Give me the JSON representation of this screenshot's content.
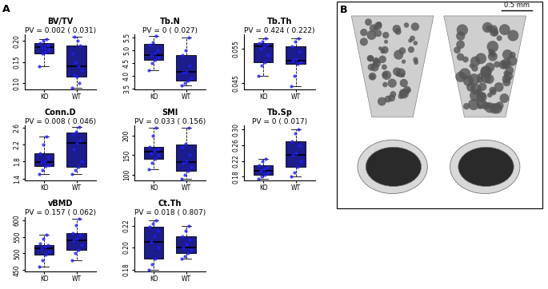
{
  "panel_labels": [
    "A",
    "B"
  ],
  "scale_bar": "0.5 mm",
  "chart_data": [
    {
      "type": "box",
      "title": "BV/TV",
      "subtitle": "PV = 0.002 ( 0.031)",
      "categories": [
        "KO",
        "WT"
      ],
      "color": "#1c1c8c",
      "point_color": "#1f1fff",
      "ylim": [
        0.085,
        0.215
      ],
      "yticks": [
        {
          "value": 0.1,
          "label": "0.10"
        },
        0.15,
        {
          "value": 0.2,
          "label": "0.20"
        }
      ],
      "boxes": [
        {
          "whislo": 0.14,
          "q1": 0.17,
          "med": 0.185,
          "q3": 0.195,
          "whishi": 0.205
        },
        {
          "whislo": 0.09,
          "q1": 0.115,
          "med": 0.14,
          "q3": 0.19,
          "whishi": 0.21
        }
      ],
      "points": [
        [
          0.14,
          0.17,
          0.175,
          0.18,
          0.185,
          0.185,
          0.19,
          0.195,
          0.2,
          0.205
        ],
        [
          0.09,
          0.1,
          0.115,
          0.12,
          0.13,
          0.14,
          0.15,
          0.17,
          0.19,
          0.2,
          0.21
        ]
      ]
    },
    {
      "type": "box",
      "title": "Tb.N",
      "subtitle": "PV = 0 ( 0.027)",
      "categories": [
        "KO",
        "WT"
      ],
      "color": "#1c1c8c",
      "point_color": "#1f1fff",
      "ylim": [
        3.45,
        5.6
      ],
      "yticks": [
        3.5,
        {
          "value": 4,
          "label": "4.0"
        },
        4.5,
        {
          "value": 5,
          "label": "5.0"
        },
        5.5
      ],
      "boxes": [
        {
          "whislo": 4.2,
          "q1": 4.6,
          "med": 4.8,
          "q3": 5.25,
          "whishi": 5.55
        },
        {
          "whislo": 3.6,
          "q1": 3.8,
          "med": 4.15,
          "q3": 4.8,
          "whishi": 5.5
        }
      ],
      "points": [
        [
          4.2,
          4.5,
          4.6,
          4.7,
          4.8,
          4.85,
          5.0,
          5.2,
          5.3,
          5.55
        ],
        [
          3.6,
          3.7,
          3.8,
          3.9,
          4.1,
          4.15,
          4.4,
          4.8,
          5.0,
          5.5
        ]
      ]
    },
    {
      "type": "box",
      "title": "Tb.Th",
      "subtitle": "PV = 0.424 ( 0.222)",
      "categories": [
        "KO",
        "WT"
      ],
      "color": "#1c1c8c",
      "point_color": "#1f1fff",
      "ylim": [
        0.043,
        0.059
      ],
      "yticks": [
        0.045,
        0.055
      ],
      "boxes": [
        {
          "whislo": 0.047,
          "q1": 0.051,
          "med": 0.0555,
          "q3": 0.0565,
          "whishi": 0.058
        },
        {
          "whislo": 0.044,
          "q1": 0.0505,
          "med": 0.0515,
          "q3": 0.0555,
          "whishi": 0.058
        }
      ],
      "points": [
        [
          0.047,
          0.05,
          0.051,
          0.053,
          0.055,
          0.0555,
          0.056,
          0.0565,
          0.057,
          0.058
        ],
        [
          0.044,
          0.047,
          0.0505,
          0.051,
          0.0515,
          0.052,
          0.054,
          0.0555,
          0.057,
          0.058
        ]
      ]
    },
    {
      "type": "box",
      "title": "Conn.D",
      "subtitle": "PV = 0.008 ( 0.046)",
      "categories": [
        "KO",
        "WT"
      ],
      "color": "#1c1c8c",
      "point_color": "#1f1fff",
      "ylim": [
        1.35,
        2.65
      ],
      "yticks": [
        1.4,
        1.8,
        2.2,
        2.6
      ],
      "boxes": [
        {
          "whislo": 1.5,
          "q1": 1.7,
          "med": 1.78,
          "q3": 2.0,
          "whishi": 2.4
        },
        {
          "whislo": 1.5,
          "q1": 1.68,
          "med": 2.25,
          "q3": 2.48,
          "whishi": 2.62
        }
      ],
      "points": [
        [
          1.5,
          1.6,
          1.7,
          1.72,
          1.78,
          1.8,
          1.9,
          2.0,
          2.2,
          2.4
        ],
        [
          1.5,
          1.6,
          1.68,
          1.8,
          2.1,
          2.25,
          2.3,
          2.45,
          2.5,
          2.62
        ]
      ]
    },
    {
      "type": "box",
      "title": "SMI",
      "subtitle": "PV = 0.033 ( 0.156)",
      "categories": [
        "KO",
        "WT"
      ],
      "color": "#1c1c8c",
      "point_color": "#1f1fff",
      "ylim": [
        85,
        225
      ],
      "yticks": [
        100,
        150,
        200
      ],
      "boxes": [
        {
          "whislo": 115,
          "q1": 140,
          "med": 158,
          "q3": 170,
          "whishi": 220
        },
        {
          "whislo": 90,
          "q1": 110,
          "med": 133,
          "q3": 178,
          "whishi": 220
        }
      ],
      "points": [
        [
          115,
          130,
          140,
          150,
          155,
          160,
          165,
          170,
          200,
          220
        ],
        [
          90,
          100,
          110,
          120,
          130,
          135,
          150,
          170,
          180,
          220
        ]
      ]
    },
    {
      "type": "box",
      "title": "Tb.Sp",
      "subtitle": "PV = 0 ( 0.017)",
      "categories": [
        "KO",
        "WT"
      ],
      "color": "#1c1c8c",
      "point_color": "#1f1fff",
      "ylim": [
        0.17,
        0.31
      ],
      "yticks": [
        0.18,
        0.22,
        0.26,
        {
          "value": 0.3,
          "label": "0.30"
        }
      ],
      "boxes": [
        {
          "whislo": 0.175,
          "q1": 0.185,
          "med": 0.195,
          "q3": 0.21,
          "whishi": 0.225
        },
        {
          "whislo": 0.18,
          "q1": 0.205,
          "med": 0.235,
          "q3": 0.27,
          "whishi": 0.3
        }
      ],
      "points": [
        [
          0.175,
          0.18,
          0.185,
          0.19,
          0.195,
          0.2,
          0.205,
          0.21,
          0.22,
          0.225
        ],
        [
          0.18,
          0.19,
          0.205,
          0.22,
          0.235,
          0.24,
          0.26,
          0.27,
          0.29,
          0.3
        ]
      ]
    },
    {
      "type": "box",
      "title": "vBMD",
      "subtitle": "PV = 0.157 ( 0.062)",
      "categories": [
        "KO",
        "WT"
      ],
      "color": "#1c1c8c",
      "point_color": "#1f1fff",
      "ylim": [
        445,
        610
      ],
      "yticks": [
        450,
        500,
        550,
        600
      ],
      "boxes": [
        {
          "whislo": 460,
          "q1": 495,
          "med": 515,
          "q3": 525,
          "whishi": 555
        },
        {
          "whislo": 480,
          "q1": 510,
          "med": 540,
          "q3": 560,
          "whishi": 605
        }
      ],
      "points": [
        [
          460,
          480,
          495,
          505,
          515,
          520,
          525,
          530,
          545,
          555
        ],
        [
          480,
          500,
          510,
          525,
          540,
          545,
          555,
          560,
          585,
          605
        ]
      ]
    },
    {
      "type": "box",
      "title": "Ct.Th",
      "subtitle": "PV = 0.018 ( 0.807)",
      "categories": [
        "KO",
        "WT"
      ],
      "color": "#1c1c8c",
      "point_color": "#1f1fff",
      "ylim": [
        0.178,
        0.228
      ],
      "yticks": [
        0.18,
        {
          "value": 0.2,
          "label": "0.20"
        },
        0.22
      ],
      "boxes": [
        {
          "whislo": 0.18,
          "q1": 0.19,
          "med": 0.205,
          "q3": 0.219,
          "whishi": 0.225
        },
        {
          "whislo": 0.19,
          "q1": 0.195,
          "med": 0.2,
          "q3": 0.21,
          "whishi": 0.22
        }
      ],
      "points": [
        [
          0.18,
          0.185,
          0.19,
          0.2,
          0.205,
          0.21,
          0.215,
          0.219,
          0.222,
          0.225
        ],
        [
          0.19,
          0.192,
          0.195,
          0.198,
          0.2,
          0.203,
          0.207,
          0.21,
          0.215,
          0.22
        ]
      ]
    }
  ]
}
